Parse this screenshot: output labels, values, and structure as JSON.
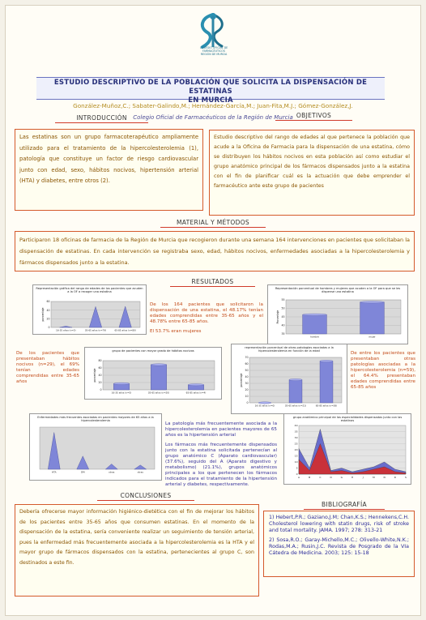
{
  "logo": {
    "caption_line1": "COLEGIO OFICIAL DE",
    "caption_line2": "FARMACÉUTICOS",
    "caption_line3": "REGIÓN DE MURCIA"
  },
  "header": {
    "title_line1": "ESTUDIO DESCRIPTIVO DE LA POBLACIÓN QUE SOLICITA LA DISPENSACIÓN DE ESTATINAS",
    "title_line2": "EN MURCIA",
    "authors": "González-Muñoz,C.; Sabater-Galindo,M.; Hernández-García,M.; Juan-Fita,M.J.; Gómez-González,J.",
    "institution": "Colegio Oficial de Farmacéuticos de la Región de Murcia"
  },
  "intro": {
    "heading": "INTRODUCCIÓN",
    "text": "Las estatinas son un grupo farmacoterapéutico ampliamente utilizado para el tratamiento de la hipercolesterolemia (1), patología que constituye un factor de riesgo cardiovascular junto con edad, sexo, hábitos nocivos, hipertensión arterial (HTA) y diabetes, entre otros (2)."
  },
  "objectives": {
    "heading": "OBJETIVOS",
    "text": "Estudio descriptivo del rango de edades al que pertenece la población que acude a la Oficina de Farmacia para la dispensación de una estatina, cómo se distribuyen los hábitos nocivos en esta población así como estudiar el grupo anatómico principal de los fármacos dispensados junto a la estatina con el fin de planificar cuál es la actuación que debe emprender el farmacéutico ante este grupo de pacientes"
  },
  "methods": {
    "heading": "MATERIAL Y MÉTODOS",
    "text": "Participaron 18 oficinas de farmacia de la Región de Murcia que recogieron durante una semana 164 intervenciones en pacientes que solicitaban la dispensación de estatinas. En cada intervención se registraba sexo, edad, hábitos nocivos, enfermedades asociadas a la hipercolesterolemia y fármacos dispensados junto a la estatina."
  },
  "results": {
    "heading": "RESULTADOS",
    "para_age": "De los 164 pacientes que solicitaron la dispensación de una estatina, el 48.17% tenían edades comprendidas entre 35-65 años y el 48.78% entre 65-85 años.",
    "para_women": "El 53.7% eran mujeres",
    "para_habits": "De los pacientes que presentaban hábitos nocivos (n=29), el 69% tenían edades comprendidas entre 35-65 años",
    "para_pathologies": "De entre los pacientes que presentaban otras patologías asociadas a la hipercolesterolemia (n=59), el 64.4% presentaban edades comprendidas entre 65-85 años",
    "para_hta": "La patología más frecuentemente asociada a la hipercolesterolemia en pacientes mayores de 65 años es la hipertensión arterial",
    "para_drugs": "Los fármacos más frecuentemente dispensados junto con la estatina solicitada pertenecían al grupo anatómico C (Aparato cardiovascular) (37.6%), seguido del A (Aparato digestivo y metabolismo) (21.1%), grupos anatómicos principales a los que pertenecen los fármacos indicados para el tratamiento de la hipertensión arterial y diabetes, respectivamente."
  },
  "conclusions": {
    "heading": "CONCLUSIONES",
    "text": "Debería ofrecerse mayor información higiénico-dietética con el fin de mejorar los hábitos de los pacientes entre 35-65 años que consumen estatinas. En el momento de la dispensación de la estatina, sería conveniente realizar un seguimiento de tensión arterial, pues la enfermedad más frecuentemente asociada a la hipercolesterolemia es la HTA y el mayor grupo de fármacos dispensados con la estatina, pertenecientes al grupo C, son destinados a este fin."
  },
  "bibliography": {
    "heading": "BIBLIOGRAFÍA",
    "ref1": "1) Hebert,P.R.; Gaziano,J.M; Chan,K.S.; Hennekens,C.H. Cholesterol lowering with statin drugs, risk of stroke and total mortality. JAMA. 1997; 278: 313-21",
    "ref2": "2) Sosa,R.O.; Garay-Michello,M.C.; Olivello-White,N.K.; Rodas,M.A.; Rusin,J.C. Revista de Posgrado de la VIa Cátedra de Medicina. 2003; 125: 15-18"
  },
  "colors": {
    "box_border": "#d45a2c",
    "title_text": "#28307a",
    "chart_bar": "#7f86d8"
  },
  "chart_data": [
    {
      "type": "bar",
      "title": "Representación gráfica del rango de edades de los pacientes que acuden a la OF a recoger una estatina",
      "ylabel": "porcentaje",
      "categories": [
        "16-35 años (n=5)",
        "35-65 años (n=79)",
        "65-85 años (n=80)"
      ],
      "values": [
        3,
        48.17,
        48.78
      ],
      "ylim": [
        0,
        60
      ],
      "yticks": [
        "0",
        "20",
        "40",
        "60"
      ]
    },
    {
      "type": "bar",
      "title": "Representación porcentual de hombres y mujeres que acuden a la OF para que se les dispense una estatina",
      "ylabel": "Porcentaje",
      "categories": [
        "hombre",
        "mujer"
      ],
      "values": [
        46.3,
        53.7
      ],
      "ylim": [
        35,
        55
      ],
      "yticks": [
        "35",
        "40",
        "45",
        "50",
        "55"
      ]
    },
    {
      "type": "bar",
      "title": "grupo de pacientes con mayor grado de hábitos nocivos",
      "ylabel": "porcentaje",
      "categories": [
        "16-35 años (n=5)",
        "35-65 años (n=20)",
        "65-85 años (n=4)"
      ],
      "values": [
        17,
        69,
        14
      ],
      "ylim": [
        0,
        80
      ],
      "yticks": [
        "0",
        "20",
        "40",
        "60",
        "80"
      ]
    },
    {
      "type": "bar",
      "title": "representación porcentual de otras patologías asociadas a la hipercolesterolemia en función de la edad",
      "ylabel": "porcentaje",
      "categories": [
        "16-35 años (n=0)",
        "35-65 años (n=21)",
        "65-85 años (n=38)"
      ],
      "values": [
        0,
        35.6,
        64.4
      ],
      "ylim": [
        0,
        70
      ],
      "yticks": [
        "0",
        "10",
        "20",
        "30",
        "40",
        "50",
        "60",
        "70"
      ]
    },
    {
      "type": "bar",
      "title": "Enfermedades más frecuentes asociadas en pacientes mayores de 65 años a la hipercolesterolemia",
      "categories": [
        "HTA",
        "DM",
        "otras",
        "otras"
      ],
      "values": [
        70,
        25,
        10,
        8
      ],
      "ylim": [
        0,
        80
      ]
    },
    {
      "type": "area",
      "title": "grupo anatómico principal de las especialidades dispensadas junto con las estatinas",
      "categories": [
        "A",
        "B",
        "C",
        "D",
        "G",
        "H",
        "J",
        "M",
        "N",
        "R",
        "S"
      ],
      "series": [
        {
          "values": [
            21,
            5,
            37,
            3,
            5,
            2,
            4,
            6,
            10,
            4,
            2
          ]
        },
        {
          "values": [
            12,
            3,
            25,
            2,
            3,
            1,
            2,
            4,
            6,
            2,
            1
          ]
        }
      ],
      "ylim": [
        0,
        40
      ],
      "yticks": [
        "0",
        "5",
        "10",
        "15",
        "20",
        "25",
        "30",
        "35",
        "40"
      ]
    }
  ]
}
